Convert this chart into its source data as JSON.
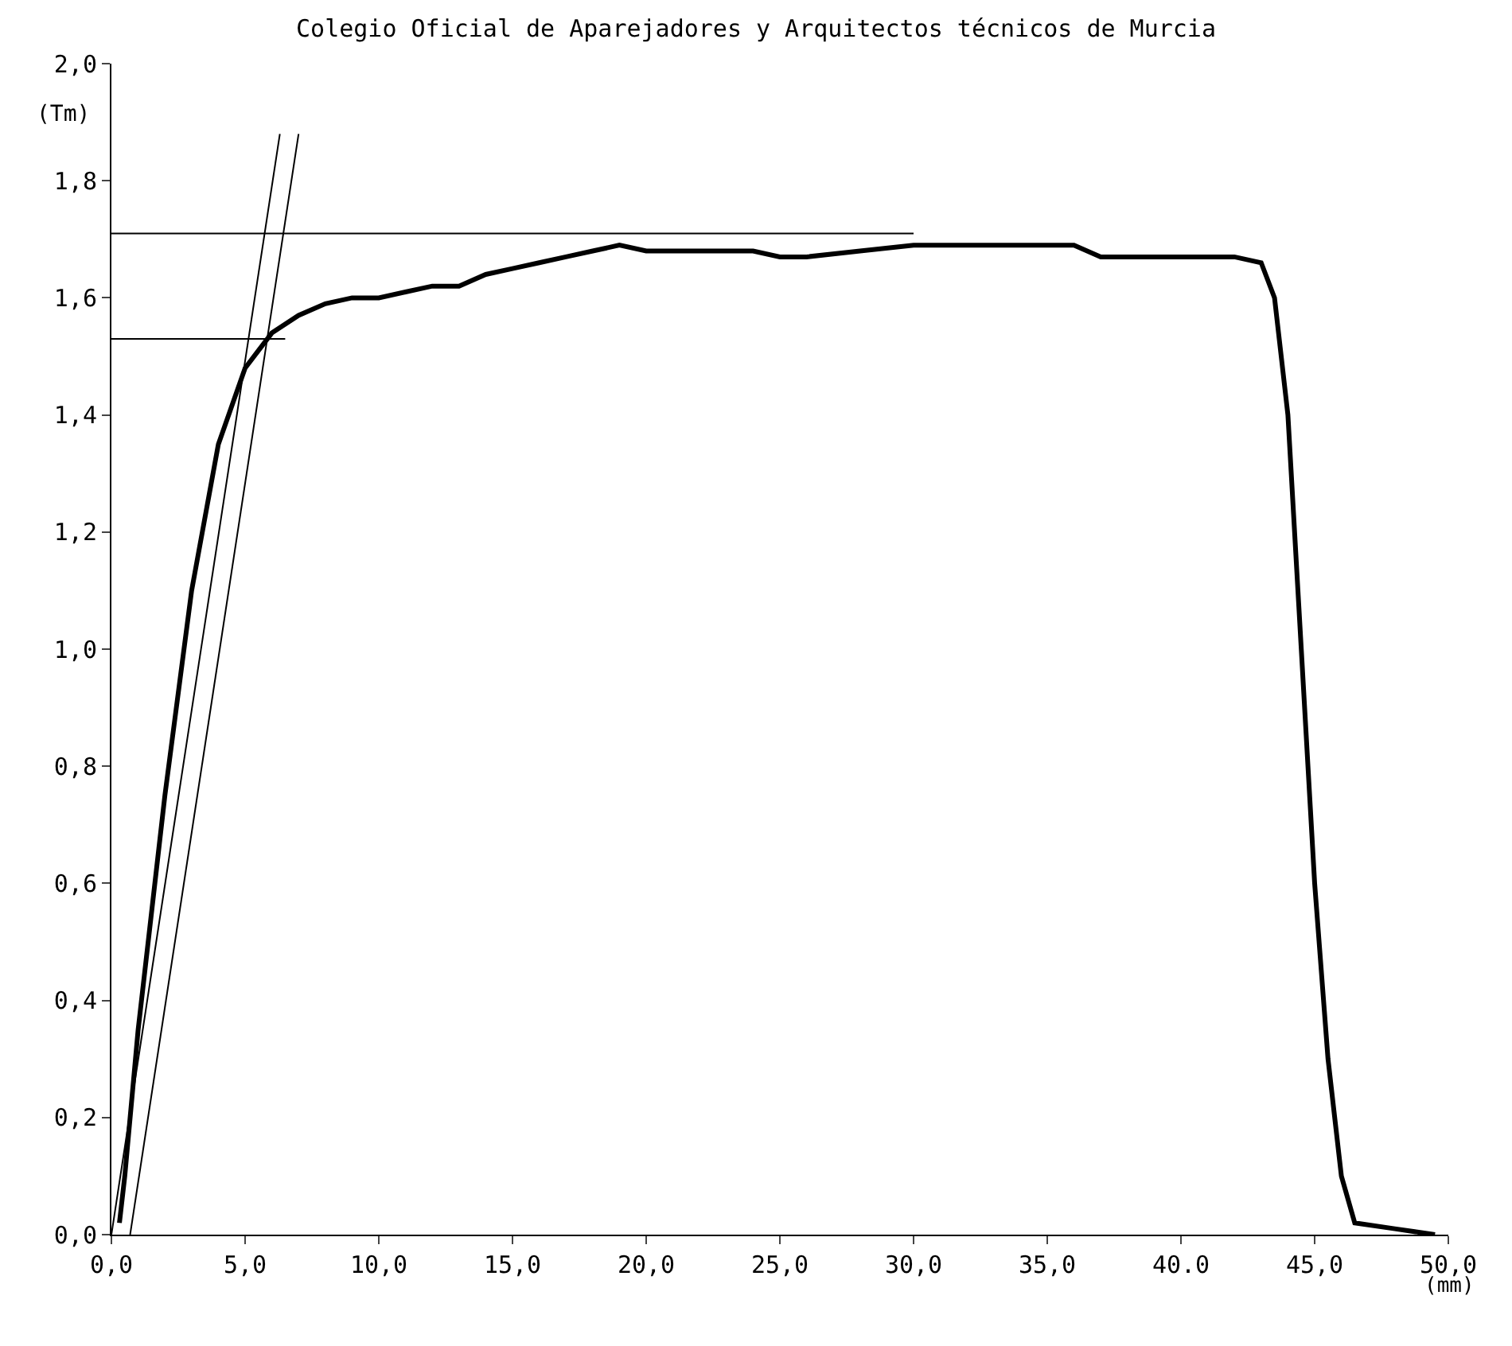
{
  "chart_data": {
    "type": "line",
    "title": "Colegio Oficial de Aparejadores y Arquitectos técnicos de Murcia",
    "xlabel": "(mm)",
    "ylabel": "(Tm)",
    "xlim": [
      0,
      50
    ],
    "ylim": [
      0,
      2.0
    ],
    "xticks": [
      {
        "value": 0,
        "label": "0,0"
      },
      {
        "value": 5,
        "label": "5,0"
      },
      {
        "value": 10,
        "label": "10,0"
      },
      {
        "value": 15,
        "label": "15,0"
      },
      {
        "value": 20,
        "label": "20,0"
      },
      {
        "value": 25,
        "label": "25,0"
      },
      {
        "value": 30,
        "label": "30,0"
      },
      {
        "value": 35,
        "label": "35,0"
      },
      {
        "value": 40,
        "label": "40.0"
      },
      {
        "value": 45,
        "label": "45,0"
      },
      {
        "value": 50,
        "label": "50,0"
      }
    ],
    "yticks": [
      {
        "value": 0,
        "label": "0,0"
      },
      {
        "value": 0.2,
        "label": "0,2"
      },
      {
        "value": 0.4,
        "label": "0,4"
      },
      {
        "value": 0.6,
        "label": "0,6"
      },
      {
        "value": 0.8,
        "label": "0,8"
      },
      {
        "value": 1.0,
        "label": "1,0"
      },
      {
        "value": 1.2,
        "label": "1,2"
      },
      {
        "value": 1.4,
        "label": "1,4"
      },
      {
        "value": 1.6,
        "label": "1,6"
      },
      {
        "value": 1.8,
        "label": "1,8"
      },
      {
        "value": 2.0,
        "label": "2,0"
      }
    ],
    "marker": "none",
    "line_style": "solid",
    "series": [
      {
        "color": "#000000",
        "x": [
          0.3,
          0.5,
          1,
          2,
          3,
          4,
          5,
          6,
          7,
          8,
          9,
          10,
          11,
          12,
          13,
          14,
          15,
          16,
          17,
          18,
          19,
          20,
          22,
          24,
          25,
          26,
          28,
          30,
          32,
          34,
          36,
          37,
          38,
          40,
          42,
          43,
          43.5,
          44,
          44.5,
          45,
          45.5,
          46,
          46.5,
          48,
          49.5
        ],
        "values": [
          0.02,
          0.1,
          0.35,
          0.75,
          1.1,
          1.35,
          1.48,
          1.54,
          1.57,
          1.59,
          1.6,
          1.6,
          1.61,
          1.62,
          1.62,
          1.64,
          1.65,
          1.66,
          1.67,
          1.68,
          1.69,
          1.68,
          1.68,
          1.68,
          1.67,
          1.67,
          1.68,
          1.69,
          1.69,
          1.69,
          1.69,
          1.67,
          1.67,
          1.67,
          1.67,
          1.66,
          1.6,
          1.4,
          1.0,
          0.6,
          0.3,
          0.1,
          0.02,
          0.01,
          0.0
        ]
      },
      {
        "color": "#000000",
        "x": [
          0.0,
          6.3
        ],
        "values": [
          0.0,
          1.88
        ]
      },
      {
        "color": "#000000",
        "x": [
          0.7,
          7.0
        ],
        "values": [
          0.0,
          1.88
        ]
      },
      {
        "color": "#000000",
        "x": [
          0,
          30
        ],
        "values": [
          1.71,
          1.71
        ]
      },
      {
        "color": "#000000",
        "x": [
          0,
          6.5
        ],
        "values": [
          1.53,
          1.53
        ]
      }
    ]
  }
}
